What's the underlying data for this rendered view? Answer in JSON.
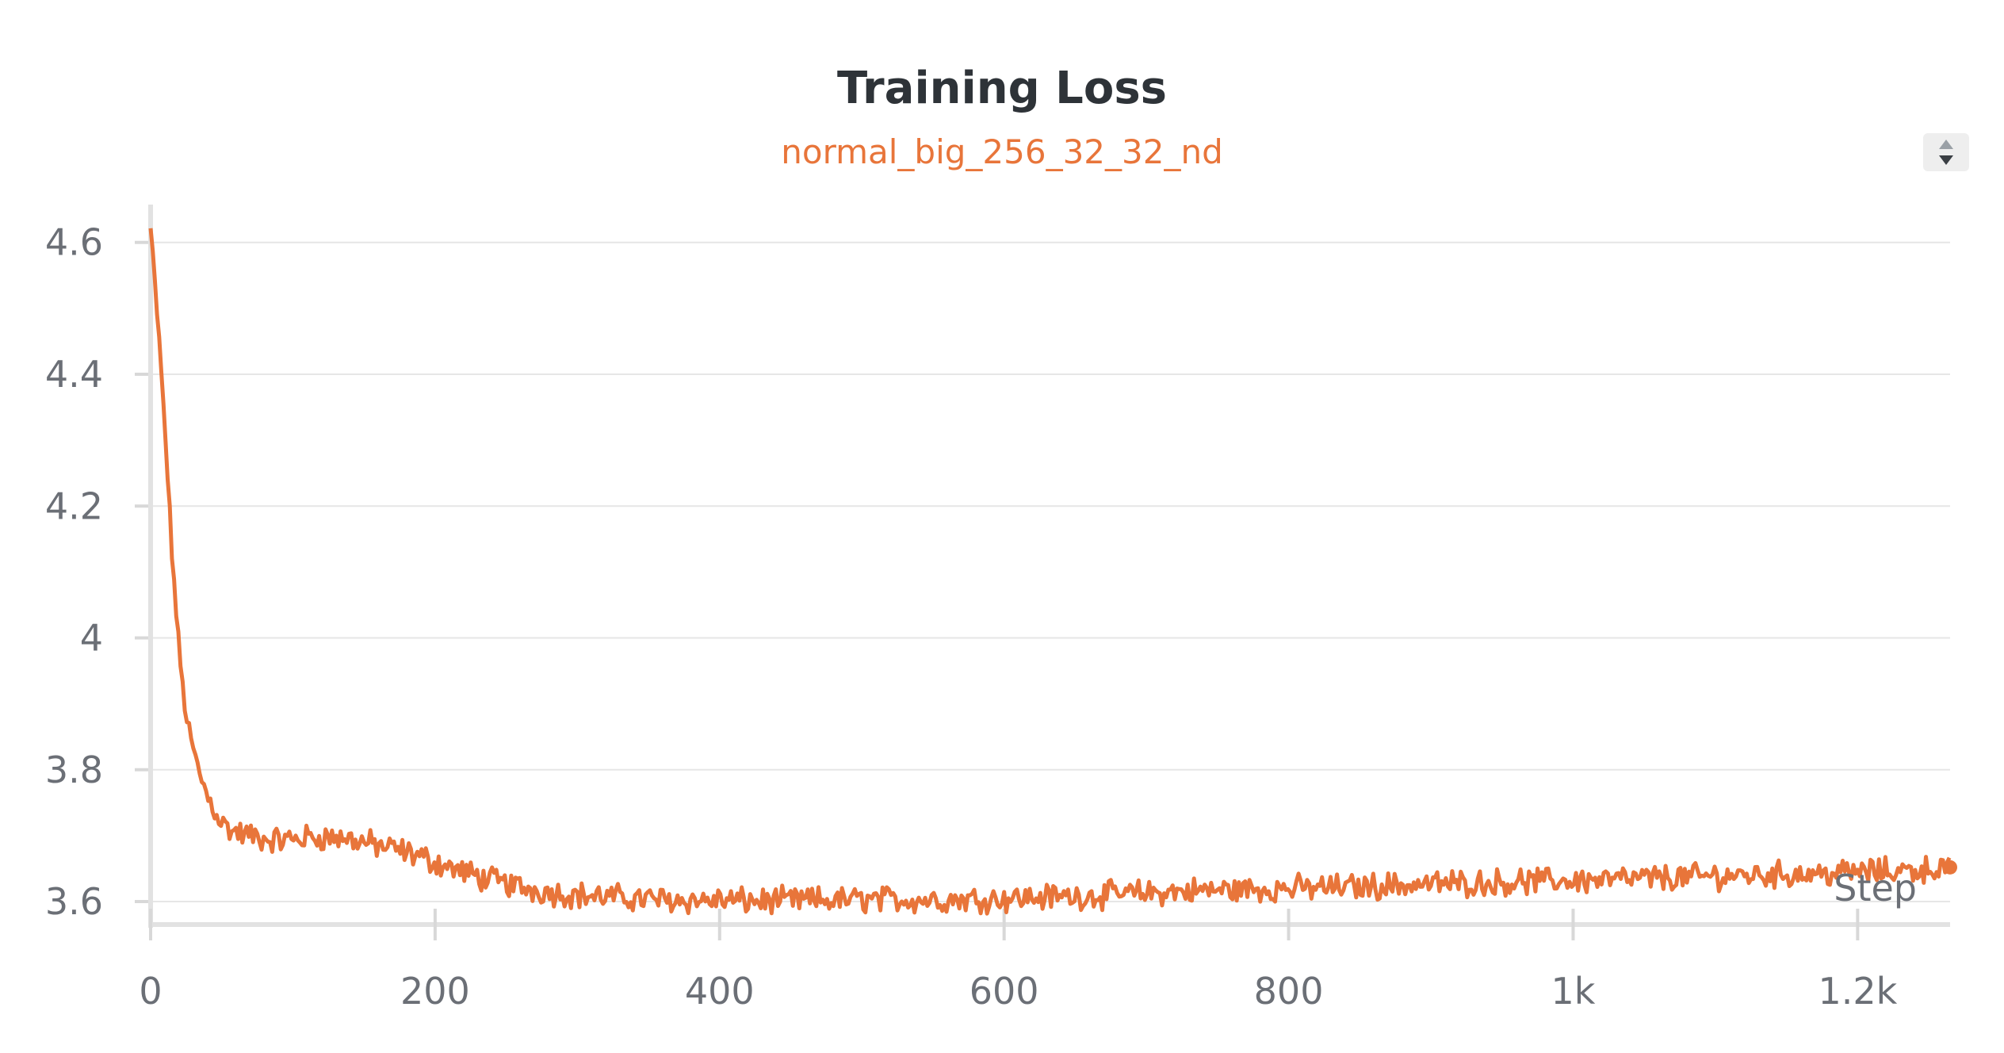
{
  "chart_data": {
    "type": "line",
    "title": "Training Loss",
    "subtitle": "normal_big_256_32_32_nd",
    "xlabel": "Step",
    "ylabel": "",
    "xlim": [
      0,
      1265
    ],
    "ylim": [
      3.57,
      4.655
    ],
    "grid": true,
    "x_ticks": [
      {
        "value": 0,
        "label": "0"
      },
      {
        "value": 200,
        "label": "200"
      },
      {
        "value": 400,
        "label": "400"
      },
      {
        "value": 600,
        "label": "600"
      },
      {
        "value": 800,
        "label": "800"
      },
      {
        "value": 1000,
        "label": "1k"
      },
      {
        "value": 1200,
        "label": "1.2k"
      }
    ],
    "y_ticks": [
      {
        "value": 3.6,
        "label": "3.6"
      },
      {
        "value": 3.8,
        "label": "3.8"
      },
      {
        "value": 4.0,
        "label": "4"
      },
      {
        "value": 4.2,
        "label": "4.2"
      },
      {
        "value": 4.4,
        "label": "4.4"
      },
      {
        "value": 4.6,
        "label": "4.6"
      }
    ],
    "series": [
      {
        "name": "normal_big_256_32_32_nd",
        "color": "#e8753a",
        "x": [
          0,
          5,
          10,
          15,
          20,
          25,
          30,
          35,
          40,
          45,
          50,
          55,
          60,
          70,
          80,
          90,
          100,
          110,
          120,
          130,
          140,
          150,
          160,
          170,
          180,
          190,
          200,
          210,
          220,
          230,
          240,
          250,
          260,
          270,
          280,
          290,
          300,
          320,
          340,
          360,
          380,
          400,
          420,
          440,
          460,
          480,
          500,
          520,
          540,
          560,
          580,
          600,
          620,
          640,
          660,
          680,
          700,
          720,
          740,
          760,
          780,
          800,
          820,
          840,
          860,
          880,
          900,
          920,
          940,
          960,
          980,
          1000,
          1020,
          1040,
          1060,
          1080,
          1100,
          1120,
          1140,
          1160,
          1180,
          1200,
          1220,
          1240,
          1265
        ],
        "y": [
          4.62,
          4.48,
          4.32,
          4.13,
          3.98,
          3.88,
          3.83,
          3.79,
          3.76,
          3.74,
          3.72,
          3.71,
          3.705,
          3.7,
          3.695,
          3.693,
          3.695,
          3.697,
          3.698,
          3.697,
          3.695,
          3.69,
          3.685,
          3.68,
          3.675,
          3.668,
          3.66,
          3.652,
          3.645,
          3.638,
          3.632,
          3.627,
          3.622,
          3.618,
          3.615,
          3.612,
          3.61,
          3.607,
          3.605,
          3.603,
          3.602,
          3.602,
          3.601,
          3.601,
          3.602,
          3.602,
          3.603,
          3.603,
          3.603,
          3.603,
          3.604,
          3.605,
          3.606,
          3.608,
          3.609,
          3.611,
          3.613,
          3.615,
          3.617,
          3.618,
          3.619,
          3.62,
          3.621,
          3.622,
          3.624,
          3.625,
          3.627,
          3.628,
          3.629,
          3.63,
          3.631,
          3.632,
          3.633,
          3.634,
          3.636,
          3.637,
          3.639,
          3.64,
          3.641,
          3.642,
          3.643,
          3.645,
          3.646,
          3.648,
          3.652
        ]
      }
    ]
  }
}
